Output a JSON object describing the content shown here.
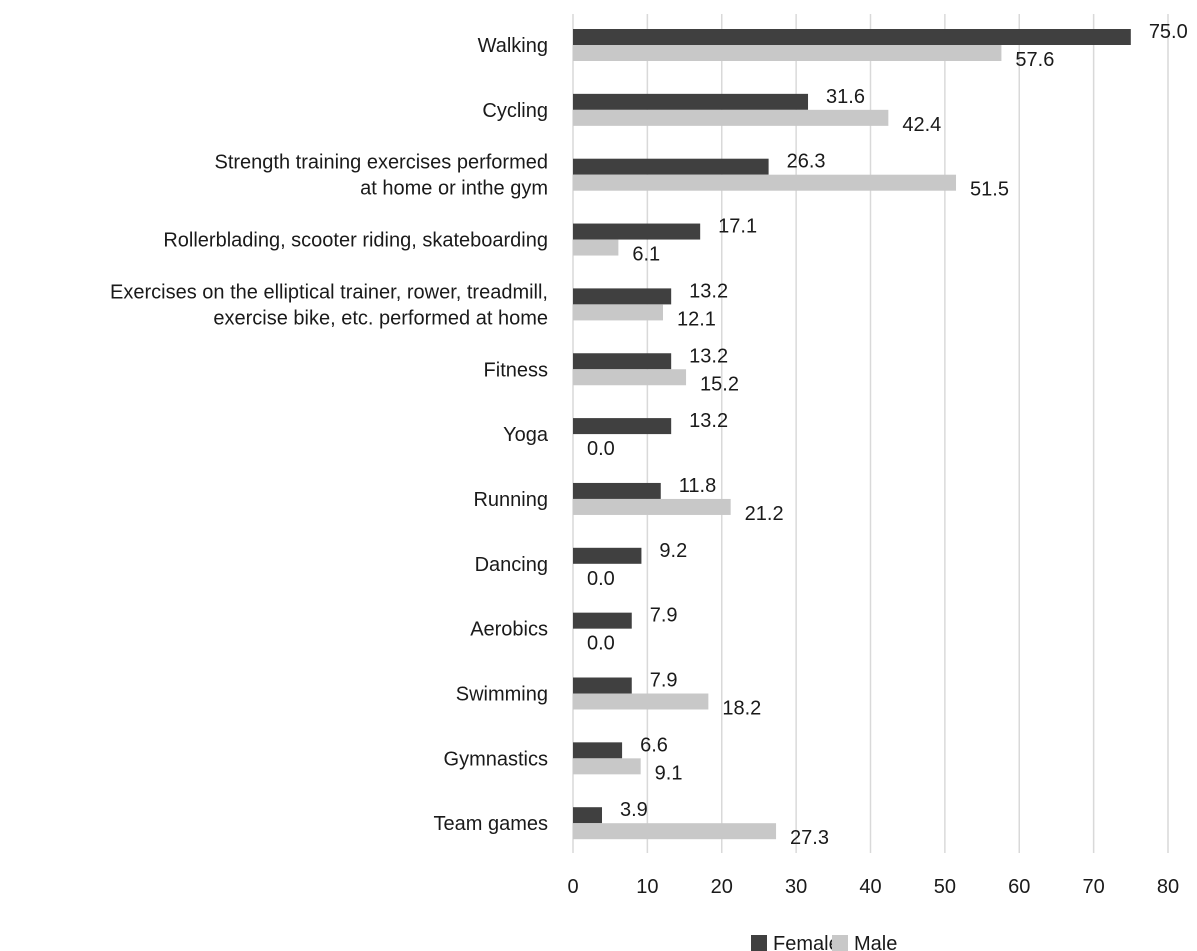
{
  "chart_data": {
    "type": "bar",
    "orientation": "horizontal",
    "categories": [
      [
        "Walking"
      ],
      [
        "Cycling"
      ],
      [
        "Strength training exercises performed",
        "at home or inthe gym"
      ],
      [
        "Rollerblading, scooter riding, skateboarding"
      ],
      [
        "Exercises on the elliptical trainer, rower, treadmill,",
        "exercise bike, etc. performed at home"
      ],
      [
        "Fitness"
      ],
      [
        "Yoga"
      ],
      [
        "Running"
      ],
      [
        "Dancing"
      ],
      [
        "Aerobics"
      ],
      [
        "Swimming"
      ],
      [
        "Gymnastics"
      ],
      [
        "Team games"
      ]
    ],
    "series": [
      {
        "name": "Female",
        "color": "#404040",
        "values": [
          75.0,
          31.6,
          26.3,
          17.1,
          13.2,
          13.2,
          13.2,
          11.8,
          9.2,
          7.9,
          7.9,
          6.6,
          3.9
        ],
        "labels": [
          "75.0",
          "31.6",
          "26.3",
          "17.1",
          "13.2",
          "13.2",
          "13.2",
          "11.8",
          "9.2",
          "7.9",
          "7.9",
          "6.6",
          "3.9"
        ]
      },
      {
        "name": "Male",
        "color": "#c8c8c8",
        "values": [
          57.6,
          42.4,
          51.5,
          6.1,
          12.1,
          15.2,
          0.0,
          21.2,
          0.0,
          0.0,
          18.2,
          9.1,
          27.3
        ],
        "labels": [
          "57.6",
          "42.4",
          "51.5",
          "6.1",
          "12.1",
          "15.2",
          "0.0",
          "21.2",
          "0.0",
          "0.0",
          "18.2",
          "9.1",
          "27.3"
        ]
      }
    ],
    "xlim": [
      0,
      80
    ],
    "xticks": [
      "0",
      "10",
      "20",
      "30",
      "40",
      "50",
      "60",
      "70",
      "80"
    ],
    "grid": true,
    "legend_position": "bottom"
  }
}
